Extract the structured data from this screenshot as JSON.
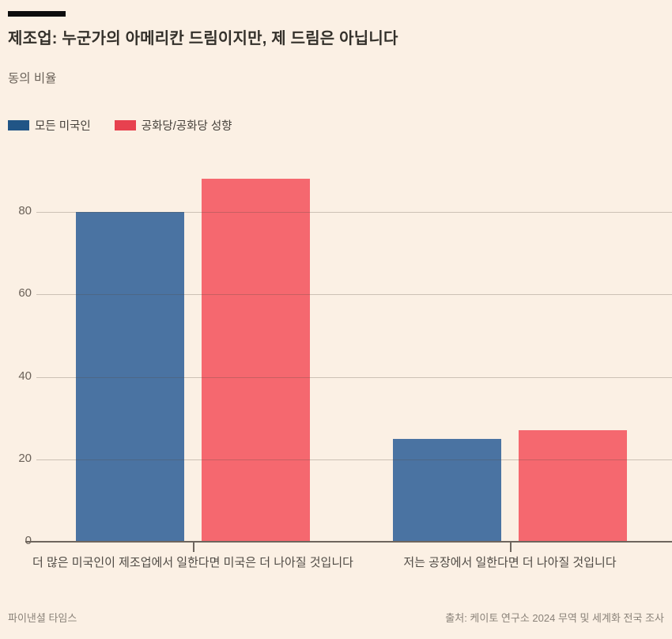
{
  "page": {
    "background_color": "#fbf0e4",
    "top_rule_color": "#0d0d0d",
    "title": "제조업: 누군가의 아메리칸 드림이지만, 제 드림은 아닙니다",
    "subtitle": "동의 비율",
    "footer_left": "파이낸셜 타임스",
    "footer_right": "출처: 케이토 연구소 2024 무역 및 세계화 전국 조사"
  },
  "legend": {
    "items": [
      {
        "label": "모든 미국인",
        "color": "#215586"
      },
      {
        "label": "공화당/공화당 성향",
        "color": "#e7414f"
      }
    ]
  },
  "chart_data": {
    "type": "bar",
    "title": "제조업: 누군가의 아메리칸 드림이지만, 제 드림은 아닙니다",
    "ylabel": "동의 비율",
    "unit": "percent",
    "categories": [
      "더 많은 미국인이 제조업에서 일한다면 미국은 더 나아질 것입니다",
      "저는 공장에서 일한다면 더 나아질 것입니다"
    ],
    "series": [
      {
        "name": "모든 미국인",
        "color": "#4a73a2",
        "values": [
          80,
          25
        ]
      },
      {
        "name": "공화당/공화당 성향",
        "color": "#f5686f",
        "values": [
          88,
          27
        ]
      }
    ],
    "yticks": [
      0,
      20,
      40,
      60,
      80
    ],
    "ylim": [
      0,
      93
    ],
    "grid": true,
    "legend_position": "top-left",
    "credit": "파이낸셜 타임스",
    "source": "출처: 케이토 연구소 2024 무역 및 세계화 전국 조사"
  }
}
